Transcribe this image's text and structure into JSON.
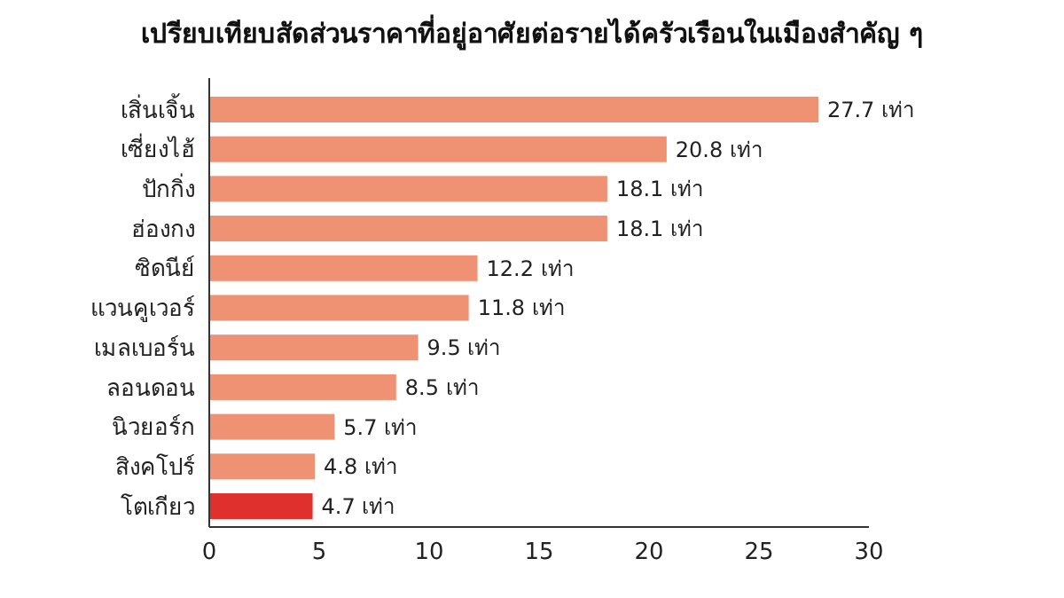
{
  "chart_data": {
    "type": "bar",
    "orientation": "horizontal",
    "title": "เปรียบเทียบสัดส่วนราคาที่อยู่อาศัยต่อรายได้ครัวเรือนในเมืองสำคัญ ๆ",
    "categories": [
      "เสิ่นเจิ้น",
      "เซี่ยงไฮ้",
      "ปักกิ่ง",
      "ฮ่องกง",
      "ซิดนีย์",
      "แวนคูเวอร์",
      "เมลเบอร์น",
      "ลอนดอน",
      "นิวยอร์ก",
      "สิงคโปร์",
      "โตเกียว"
    ],
    "values": [
      27.7,
      20.8,
      18.1,
      18.1,
      12.2,
      11.8,
      9.5,
      8.5,
      5.7,
      4.8,
      4.7
    ],
    "value_labels": [
      "27.7 เท่า",
      "20.8 เท่า",
      "18.1 เท่า",
      "18.1 เท่า",
      "12.2 เท่า",
      "11.8 เท่า",
      "9.5 เท่า",
      "8.5 เท่า",
      "5.7 เท่า",
      "4.8 เท่า",
      "4.7 เท่า"
    ],
    "colors": [
      "#ef9274",
      "#ef9274",
      "#ef9274",
      "#ef9274",
      "#ef9274",
      "#ef9274",
      "#ef9274",
      "#ef9274",
      "#ef9274",
      "#ef9274",
      "#e0302e"
    ],
    "xlim": [
      0,
      30
    ],
    "xticks": [
      0,
      5,
      10,
      15,
      20,
      25,
      30
    ]
  }
}
